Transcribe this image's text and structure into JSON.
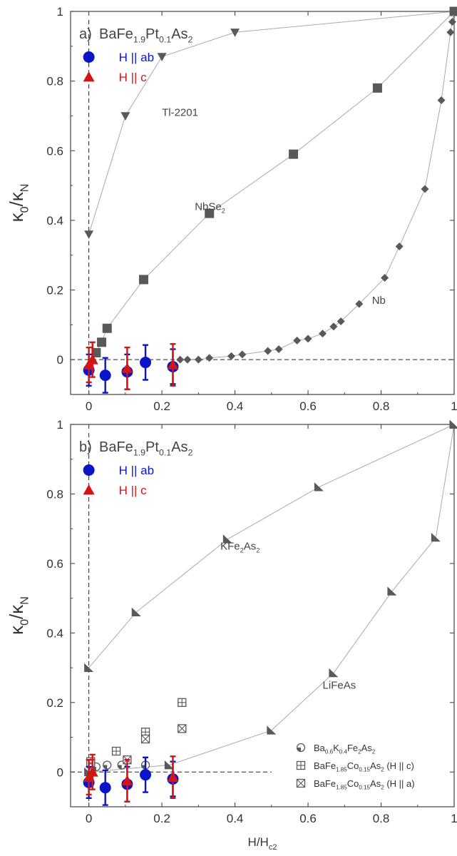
{
  "figure": {
    "xlabel_main": "H/H",
    "xlabel_sub": "c2"
  },
  "chart_data": [
    {
      "type": "scatter",
      "panel_label": "a)",
      "title_parts": [
        "BaFe",
        "1.9",
        "Pt",
        "0.1",
        "As",
        "2"
      ],
      "ylabel_parts": [
        "κ",
        "0",
        "/κ",
        "N"
      ],
      "xlim": [
        -0.05,
        1.0
      ],
      "ylim": [
        -0.1,
        1.0
      ],
      "xticks": [
        0,
        0.2,
        0.4,
        0.6,
        0.8,
        1
      ],
      "xtick_labels": [
        "0",
        "0.2",
        "0.4",
        "0.6",
        "0.8",
        "1"
      ],
      "yticks": [
        0,
        0.2,
        0.4,
        0.6,
        0.8,
        1
      ],
      "ytick_labels": [
        "0",
        "0.2",
        "0.4",
        "0.6",
        "0.8",
        "1"
      ],
      "legend": [
        {
          "label": "H || ab",
          "marker": "circle",
          "color": "#0a14c8"
        },
        {
          "label": "H || c",
          "marker": "triangle-up",
          "color": "#d21414"
        }
      ],
      "reference_series": [
        {
          "marker": "triangle-down",
          "color": "#595959",
          "label": "Tl-2201",
          "label_pos": [
            0.2,
            0.7
          ],
          "points": [
            [
              0,
              0.36
            ],
            [
              0.1,
              0.7
            ],
            [
              0.2,
              0.87
            ],
            [
              0.4,
              0.94
            ],
            [
              1.0,
              1.0
            ]
          ]
        },
        {
          "marker": "square",
          "color": "#595959",
          "label": "NbSe",
          "label_sub": "2",
          "label_pos": [
            0.29,
            0.43
          ],
          "points": [
            [
              0.02,
              0.02
            ],
            [
              0.035,
              0.05
            ],
            [
              0.05,
              0.09
            ],
            [
              0.15,
              0.23
            ],
            [
              0.33,
              0.42
            ],
            [
              0.56,
              0.59
            ],
            [
              0.79,
              0.78
            ],
            [
              1.0,
              1.0
            ]
          ]
        },
        {
          "marker": "diamond",
          "color": "#595959",
          "label": "Nb",
          "label_pos": [
            0.775,
            0.16
          ],
          "points": [
            [
              0.25,
              0.0
            ],
            [
              0.27,
              0.0
            ],
            [
              0.3,
              0.0
            ],
            [
              0.33,
              0.005
            ],
            [
              0.39,
              0.01
            ],
            [
              0.42,
              0.015
            ],
            [
              0.49,
              0.025
            ],
            [
              0.52,
              0.03
            ],
            [
              0.57,
              0.055
            ],
            [
              0.6,
              0.06
            ],
            [
              0.64,
              0.075
            ],
            [
              0.67,
              0.095
            ],
            [
              0.69,
              0.11
            ],
            [
              0.74,
              0.16
            ],
            [
              0.81,
              0.235
            ],
            [
              0.85,
              0.325
            ],
            [
              0.92,
              0.49
            ],
            [
              0.965,
              0.745
            ],
            [
              0.99,
              0.94
            ],
            [
              0.995,
              0.97
            ],
            [
              1.0,
              1.0
            ]
          ]
        }
      ],
      "series": [
        {
          "name": "H || ab",
          "marker": "circle",
          "color": "#0a14c8",
          "points": [
            [
              0.0,
              -0.03
            ],
            [
              0.045,
              -0.045
            ],
            [
              0.105,
              -0.035
            ],
            [
              0.155,
              -0.008
            ],
            [
              0.23,
              -0.02
            ]
          ],
          "errors": [
            0.045,
            0.05,
            0.05,
            0.05,
            0.05
          ]
        },
        {
          "name": "H || c",
          "marker": "triangle-up",
          "color": "#d21414",
          "points": [
            [
              0.0,
              -0.015
            ],
            [
              0.01,
              0.0
            ],
            [
              0.105,
              -0.025
            ],
            [
              0.23,
              -0.015
            ]
          ],
          "errors": [
            0.05,
            0.05,
            0.06,
            0.06
          ]
        }
      ]
    },
    {
      "type": "scatter",
      "panel_label": "b)",
      "title_parts": [
        "BaFe",
        "1.9",
        "Pt",
        "0.1",
        "As",
        "2"
      ],
      "ylabel_parts": [
        "κ",
        "0",
        "/κ",
        "N"
      ],
      "xlim": [
        -0.05,
        1.0
      ],
      "ylim": [
        -0.1,
        1.0
      ],
      "xticks": [
        0,
        0.2,
        0.4,
        0.6,
        0.8,
        1
      ],
      "xtick_labels": [
        "0",
        "0.2",
        "0.4",
        "0.6",
        "0.8",
        "1"
      ],
      "yticks": [
        0,
        0.2,
        0.4,
        0.6,
        0.8,
        1
      ],
      "ytick_labels": [
        "0",
        "0.2",
        "0.4",
        "0.6",
        "0.8",
        "1"
      ],
      "legend": [
        {
          "label": "H || ab",
          "marker": "circle",
          "color": "#0a14c8"
        },
        {
          "label": "H || c",
          "marker": "triangle-up",
          "color": "#d21414"
        }
      ],
      "legend2": [
        {
          "marker": "circle-split",
          "parts": [
            "Ba",
            "0.6",
            "K",
            "0.4",
            "Fe",
            "2",
            "As",
            "2"
          ],
          "suffix": ""
        },
        {
          "marker": "square-plus",
          "parts": [
            "BaFe",
            "1.85",
            "Co",
            "0.15",
            "As",
            "2"
          ],
          "suffix": " (H || c)"
        },
        {
          "marker": "square-x",
          "parts": [
            "BaFe",
            "1.85",
            "Co",
            "0.15",
            "As",
            "2"
          ],
          "suffix": " (H || a)"
        }
      ],
      "reference_series": [
        {
          "marker": "flag-triangle",
          "color": "#595959",
          "label": "KFe",
          "label_sub": "2",
          "label_tail": "As",
          "label_sub2": "2",
          "label_pos": [
            0.36,
            0.64
          ],
          "points": [
            [
              0,
              0.3
            ],
            [
              0.13,
              0.46
            ],
            [
              0.38,
              0.67
            ],
            [
              0.63,
              0.82
            ],
            [
              1.0,
              1.0
            ]
          ]
        },
        {
          "marker": "flag-triangle",
          "color": "#595959",
          "label": "LiFeAs",
          "label_pos": [
            0.64,
            0.24
          ],
          "points": [
            [
              0,
              0.0
            ],
            [
              0.22,
              0.02
            ],
            [
              0.5,
              0.12
            ],
            [
              0.67,
              0.285
            ],
            [
              0.83,
              0.52
            ],
            [
              0.95,
              0.675
            ],
            [
              1.0,
              1.0
            ]
          ]
        }
      ],
      "open_series": [
        {
          "marker": "circle-split",
          "points": [
            [
              0.005,
              0.02
            ],
            [
              0.02,
              0.015
            ],
            [
              0.05,
              0.02
            ],
            [
              0.09,
              0.02
            ],
            [
              0.155,
              0.02
            ]
          ]
        },
        {
          "marker": "square-plus",
          "points": [
            [
              0.005,
              0.03
            ],
            [
              0.075,
              0.06
            ],
            [
              0.155,
              0.115
            ],
            [
              0.255,
              0.2
            ]
          ]
        },
        {
          "marker": "square-x",
          "points": [
            [
              0.005,
              0.025
            ],
            [
              0.105,
              0.035
            ],
            [
              0.155,
              0.095
            ],
            [
              0.255,
              0.125
            ]
          ]
        }
      ],
      "series": [
        {
          "name": "H || ab",
          "marker": "circle",
          "color": "#0a14c8",
          "points": [
            [
              0.0,
              -0.03
            ],
            [
              0.045,
              -0.045
            ],
            [
              0.105,
              -0.035
            ],
            [
              0.155,
              -0.008
            ],
            [
              0.23,
              -0.02
            ]
          ],
          "errors": [
            0.045,
            0.05,
            0.05,
            0.05,
            0.05
          ]
        },
        {
          "name": "H || c",
          "marker": "triangle-up",
          "color": "#d21414",
          "points": [
            [
              0.0,
              -0.015
            ],
            [
              0.01,
              0.0
            ],
            [
              0.105,
              -0.025
            ],
            [
              0.23,
              -0.015
            ]
          ],
          "errors": [
            0.05,
            0.05,
            0.06,
            0.06
          ]
        }
      ]
    }
  ]
}
